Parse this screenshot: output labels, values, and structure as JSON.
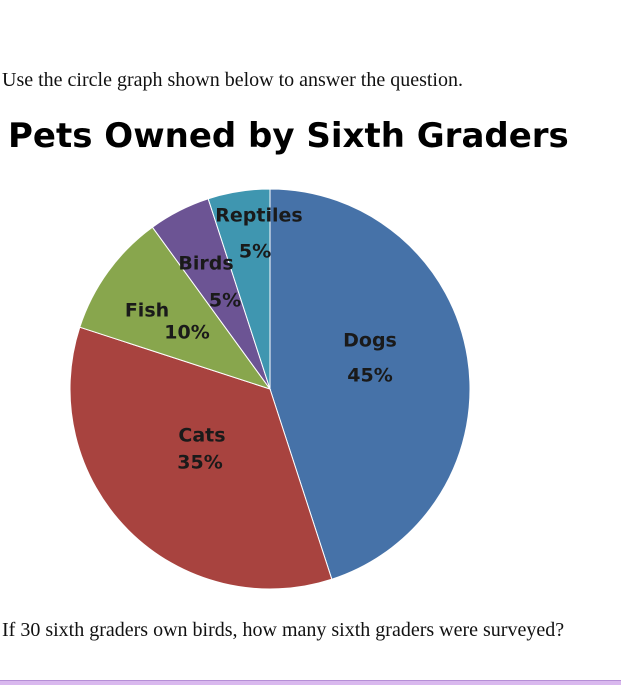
{
  "intro_text": "Use the circle graph shown below to answer the question.",
  "question_text": "If 30 sixth graders own birds, how many sixth graders were surveyed?",
  "chart_data": {
    "type": "pie",
    "title": "Pets Owned by Sixth Graders",
    "start_angle_deg": 0,
    "direction": "clockwise",
    "slices": [
      {
        "label": "Dogs",
        "value": 45,
        "value_label": "45%",
        "color": "#4672a8"
      },
      {
        "label": "Cats",
        "value": 35,
        "value_label": "35%",
        "color": "#a8433f"
      },
      {
        "label": "Fish",
        "value": 10,
        "value_label": "10%",
        "color": "#88a64d"
      },
      {
        "label": "Birds",
        "value": 5,
        "value_label": "5%",
        "color": "#6c5494"
      },
      {
        "label": "Reptiles",
        "value": 5,
        "value_label": "5%",
        "color": "#3f96b0"
      }
    ]
  }
}
